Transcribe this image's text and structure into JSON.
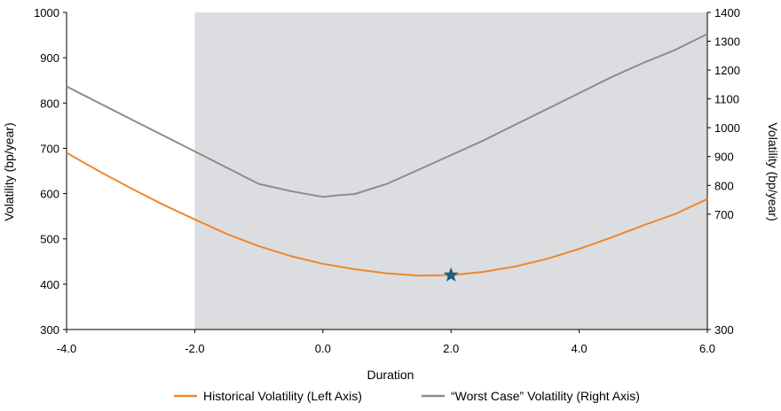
{
  "chart_data": {
    "type": "line",
    "xlabel": "Duration",
    "ylabel_left": "Volatility (bp/year)",
    "ylabel_right": "Volatility (bp/year)",
    "xlim": [
      -4.0,
      6.0
    ],
    "ylim_left": [
      300,
      1000
    ],
    "ylim_right": [
      300,
      1400
    ],
    "x_ticks": [
      "-4.0",
      "-2.0",
      "0.0",
      "2.0",
      "4.0",
      "6.0"
    ],
    "y_left_ticks": [
      "300",
      "400",
      "500",
      "600",
      "700",
      "800",
      "900",
      "1000"
    ],
    "y_right_ticks": [
      "300",
      "700",
      "800",
      "900",
      "1000",
      "1100",
      "1200",
      "1300",
      "1400"
    ],
    "shaded_region": {
      "x_from": -2.0,
      "x_to": 6.0,
      "color": "#dcdde0"
    },
    "grid": false,
    "legend_position": "bottom",
    "series": [
      {
        "name": "Historical Volatility (Left Axis)",
        "axis": "left",
        "color": "#f0872a",
        "x": [
          -4.0,
          -3.5,
          -3.0,
          -2.5,
          -2.0,
          -1.5,
          -1.0,
          -0.5,
          0.0,
          0.5,
          1.0,
          1.5,
          2.0,
          2.5,
          3.0,
          3.5,
          4.0,
          4.5,
          5.0,
          5.5,
          6.0
        ],
        "y": [
          690,
          650,
          612,
          576,
          543,
          511,
          484,
          462,
          445,
          433,
          424,
          419,
          420,
          427,
          439,
          456,
          478,
          503,
          530,
          555,
          588
        ]
      },
      {
        "name": "“Worst Case” Volatility (Right Axis)",
        "axis": "right",
        "color": "#8c8c8c",
        "x": [
          -4.0,
          -3.0,
          -2.0,
          -1.0,
          -0.5,
          0.0,
          0.2,
          0.5,
          1.0,
          1.5,
          2.0,
          2.5,
          3.0,
          3.5,
          4.0,
          4.5,
          5.0,
          5.5,
          6.0
        ],
        "y": [
          1143,
          1030,
          918,
          805,
          780,
          760,
          765,
          770,
          805,
          855,
          905,
          955,
          1010,
          1065,
          1120,
          1175,
          1225,
          1270,
          1325
        ]
      }
    ],
    "marker": {
      "shape": "star",
      "x": 2.0,
      "y": 420,
      "axis": "left",
      "color": "#1c5f82"
    }
  }
}
